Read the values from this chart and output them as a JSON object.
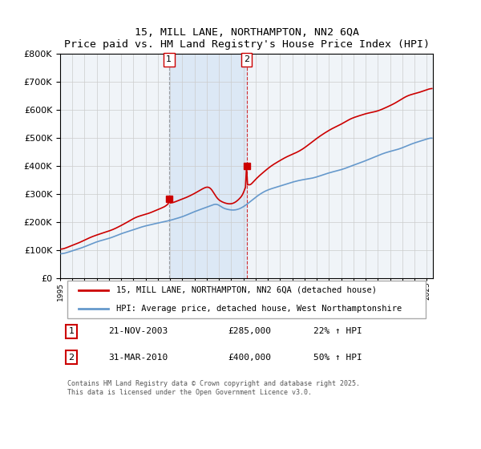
{
  "title": "15, MILL LANE, NORTHAMPTON, NN2 6QA",
  "subtitle": "Price paid vs. HM Land Registry's House Price Index (HPI)",
  "legend_line1": "15, MILL LANE, NORTHAMPTON, NN2 6QA (detached house)",
  "legend_line2": "HPI: Average price, detached house, West Northamptonshire",
  "sale1_date": "21-NOV-2003",
  "sale1_price": 285000,
  "sale1_hpi": "22% ↑ HPI",
  "sale2_date": "31-MAR-2010",
  "sale2_price": 400000,
  "sale2_hpi": "50% ↑ HPI",
  "footer": "Contains HM Land Registry data © Crown copyright and database right 2025.\nThis data is licensed under the Open Government Licence v3.0.",
  "hpi_color": "#6699cc",
  "price_color": "#cc0000",
  "marker_color": "#cc0000",
  "bg_color": "#ffffff",
  "plot_bg": "#f0f4f8",
  "shade_color": "#dce8f5",
  "grid_color": "#cccccc",
  "shade_start": 2003.9,
  "shade_end": 2010.25,
  "vline1_x": 2003.9,
  "vline2_x": 2010.25,
  "ylim": [
    0,
    800000
  ],
  "xlim_start": 1995,
  "xlim_end": 2025.5
}
